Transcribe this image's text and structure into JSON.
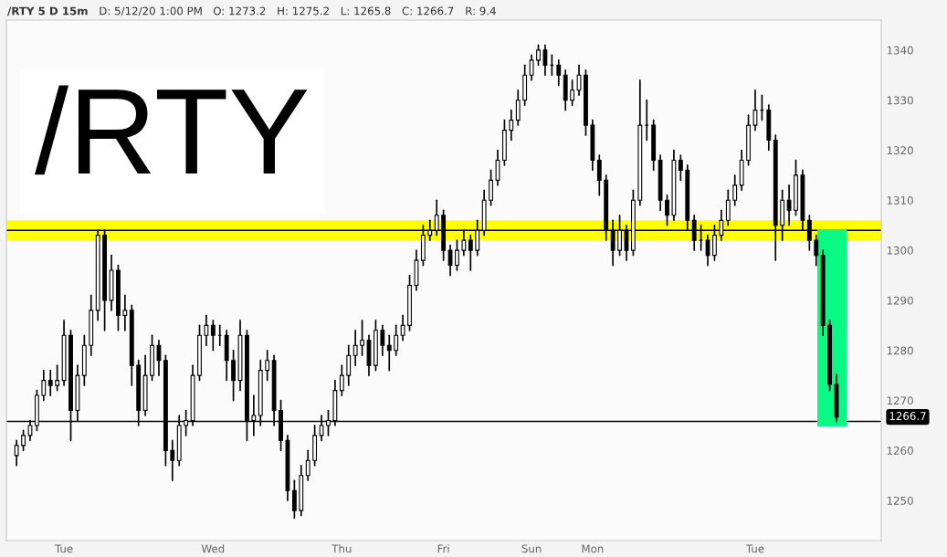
{
  "chart_data": {
    "type": "candlestick",
    "title": "/RTY",
    "annotations": [
      "/RTY 5 D 15m",
      "D: 5/12/20 1:00 PM",
      "O: 1273.2",
      "H: 1275.2",
      "L: 1265.8",
      "C: 1266.7",
      "R: 9.4",
      "1266.7"
    ],
    "categories": [
      null,
      null,
      null,
      null,
      null,
      null,
      null,
      "Tue",
      null,
      null,
      null,
      null,
      null,
      null,
      null,
      null,
      null,
      null,
      null,
      null,
      null,
      null,
      null,
      null,
      null,
      null,
      null,
      null,
      null,
      "Wed",
      null,
      null,
      null,
      null,
      null,
      null,
      null,
      null,
      null,
      null,
      null,
      null,
      null,
      null,
      null,
      null,
      null,
      null,
      "Thu",
      null,
      null,
      null,
      null,
      null,
      null,
      null,
      null,
      null,
      null,
      null,
      null,
      null,
      null,
      "Fri",
      null,
      null,
      null,
      null,
      null,
      null,
      null,
      null,
      null,
      null,
      null,
      null,
      "Sun",
      null,
      null,
      null,
      null,
      null,
      null,
      null,
      null,
      "Mon",
      null,
      null,
      null,
      null,
      null,
      null,
      null,
      null,
      null,
      null,
      null,
      null,
      null,
      null,
      null,
      null,
      null,
      null,
      null,
      null,
      null,
      null,
      null,
      "Tue",
      null,
      null,
      null,
      null,
      null,
      null,
      null,
      null,
      null,
      null,
      null,
      null
    ],
    "ohlc": [
      [
        1259,
        1262,
        1257,
        1261
      ],
      [
        1261,
        1264,
        1260,
        1263
      ],
      [
        1263,
        1266,
        1262,
        1265
      ],
      [
        1265,
        1272,
        1264,
        1271
      ],
      [
        1271,
        1276,
        1270,
        1274
      ],
      [
        1274,
        1276,
        1271,
        1273
      ],
      [
        1273,
        1277,
        1272,
        1274
      ],
      [
        1274,
        1286,
        1273,
        1283
      ],
      [
        1283,
        1284,
        1262,
        1268
      ],
      [
        1268,
        1277,
        1266,
        1275
      ],
      [
        1275,
        1283,
        1273,
        1281
      ],
      [
        1281,
        1291,
        1279,
        1288
      ],
      [
        1288,
        1304,
        1286,
        1303
      ],
      [
        1303,
        1304,
        1284,
        1290
      ],
      [
        1290,
        1299,
        1288,
        1296
      ],
      [
        1296,
        1297,
        1284,
        1287
      ],
      [
        1287,
        1291,
        1284,
        1288
      ],
      [
        1288,
        1289,
        1273,
        1277
      ],
      [
        1277,
        1278,
        1265,
        1268
      ],
      [
        1268,
        1279,
        1267,
        1275
      ],
      [
        1275,
        1283,
        1274,
        1281
      ],
      [
        1281,
        1282,
        1275,
        1278
      ],
      [
        1278,
        1279,
        1257,
        1260
      ],
      [
        1260,
        1262,
        1254,
        1258
      ],
      [
        1258,
        1267,
        1257,
        1265
      ],
      [
        1265,
        1268,
        1263,
        1266
      ],
      [
        1266,
        1277,
        1265,
        1275
      ],
      [
        1275,
        1285,
        1274,
        1283
      ],
      [
        1283,
        1287,
        1281,
        1285
      ],
      [
        1285,
        1286,
        1280,
        1283
      ],
      [
        1283,
        1285,
        1281,
        1283
      ],
      [
        1283,
        1284,
        1274,
        1278
      ],
      [
        1278,
        1280,
        1270,
        1274
      ],
      [
        1274,
        1286,
        1272,
        1283
      ],
      [
        1283,
        1284,
        1262,
        1266
      ],
      [
        1266,
        1271,
        1263,
        1267
      ],
      [
        1267,
        1278,
        1265,
        1276
      ],
      [
        1276,
        1280,
        1274,
        1278
      ],
      [
        1278,
        1279,
        1265,
        1268
      ],
      [
        1268,
        1270,
        1260,
        1262
      ],
      [
        1262,
        1263,
        1250,
        1252
      ],
      [
        1252,
        1254,
        1246.5,
        1248
      ],
      [
        1248,
        1257,
        1247,
        1255
      ],
      [
        1255,
        1260,
        1254,
        1258
      ],
      [
        1258,
        1265,
        1257,
        1263
      ],
      [
        1263,
        1267,
        1262,
        1265
      ],
      [
        1265,
        1268,
        1263,
        1266
      ],
      [
        1266,
        1274,
        1265,
        1272
      ],
      [
        1272,
        1277,
        1271,
        1275
      ],
      [
        1275,
        1281,
        1273,
        1279
      ],
      [
        1279,
        1284,
        1277,
        1281
      ],
      [
        1281,
        1286,
        1279,
        1282
      ],
      [
        1282,
        1283,
        1275,
        1277
      ],
      [
        1277,
        1286,
        1276,
        1284
      ],
      [
        1284,
        1285,
        1279,
        1281
      ],
      [
        1281,
        1283,
        1276,
        1280
      ],
      [
        1280,
        1285,
        1279,
        1283
      ],
      [
        1283,
        1287,
        1282,
        1285
      ],
      [
        1285,
        1295,
        1284,
        1293
      ],
      [
        1293,
        1300,
        1292,
        1298
      ],
      [
        1298,
        1305,
        1297,
        1303
      ],
      [
        1303,
        1306,
        1302,
        1304
      ],
      [
        1304,
        1310,
        1303,
        1307
      ],
      [
        1307,
        1308,
        1298,
        1300
      ],
      [
        1300,
        1301,
        1295,
        1297
      ],
      [
        1297,
        1302,
        1296,
        1300
      ],
      [
        1300,
        1304,
        1299,
        1302
      ],
      [
        1302,
        1303,
        1296,
        1300
      ],
      [
        1300,
        1306,
        1299,
        1304
      ],
      [
        1304,
        1312,
        1303,
        1310
      ],
      [
        1310,
        1316,
        1309,
        1314
      ],
      [
        1314,
        1320,
        1313,
        1318
      ],
      [
        1318,
        1326,
        1317,
        1324
      ],
      [
        1324,
        1328,
        1322,
        1326
      ],
      [
        1326,
        1332,
        1325,
        1330
      ],
      [
        1330,
        1337,
        1329,
        1335
      ],
      [
        1335,
        1339,
        1334,
        1338
      ],
      [
        1338,
        1341,
        1337,
        1340
      ],
      [
        1340,
        1341,
        1335,
        1337
      ],
      [
        1337,
        1339,
        1335,
        1337
      ],
      [
        1337,
        1338,
        1333,
        1335
      ],
      [
        1335,
        1336,
        1328,
        1330
      ],
      [
        1330,
        1334,
        1329,
        1332
      ],
      [
        1332,
        1337,
        1331,
        1335
      ],
      [
        1335,
        1336,
        1323,
        1325
      ],
      [
        1325,
        1326,
        1316,
        1318
      ],
      [
        1318,
        1319,
        1311,
        1314
      ],
      [
        1314,
        1315,
        1302,
        1304
      ],
      [
        1304,
        1306,
        1297,
        1300
      ],
      [
        1300,
        1307,
        1299,
        1304
      ],
      [
        1304,
        1305,
        1298,
        1300
      ],
      [
        1300,
        1312,
        1299,
        1310
      ],
      [
        1310,
        1334,
        1309,
        1325
      ],
      [
        1325,
        1330,
        1322,
        1325
      ],
      [
        1325,
        1326,
        1316,
        1318
      ],
      [
        1318,
        1319,
        1308,
        1310
      ],
      [
        1310,
        1311,
        1305,
        1307
      ],
      [
        1307,
        1320,
        1306,
        1318
      ],
      [
        1318,
        1319,
        1314,
        1316
      ],
      [
        1316,
        1317,
        1304,
        1306
      ],
      [
        1306,
        1307,
        1300,
        1302
      ],
      [
        1302,
        1305,
        1300,
        1302
      ],
      [
        1302,
        1303,
        1297,
        1299
      ],
      [
        1299,
        1305,
        1298,
        1303
      ],
      [
        1303,
        1308,
        1302,
        1306
      ],
      [
        1306,
        1312,
        1305,
        1310
      ],
      [
        1310,
        1315,
        1309,
        1313
      ],
      [
        1313,
        1320,
        1312,
        1318
      ],
      [
        1318,
        1327,
        1317,
        1325
      ],
      [
        1325,
        1332,
        1324,
        1328
      ],
      [
        1328,
        1331,
        1326,
        1328
      ],
      [
        1328,
        1329,
        1320,
        1322
      ],
      [
        1322,
        1323,
        1298,
        1305
      ],
      [
        1305,
        1312,
        1302,
        1310
      ],
      [
        1310,
        1313,
        1305,
        1308
      ],
      [
        1308,
        1318,
        1307,
        1315
      ],
      [
        1315,
        1316,
        1304,
        1306
      ],
      [
        1306,
        1307,
        1300,
        1302
      ],
      [
        1302,
        1303,
        1297,
        1299
      ],
      [
        1299,
        1300,
        1283,
        1285
      ],
      [
        1285,
        1286,
        1272,
        1273.2
      ],
      [
        1273.2,
        1275.2,
        1265.8,
        1266.7
      ]
    ],
    "color": "#000000",
    "ylim": [
      1242,
      1346
    ],
    "yticks": [
      1250,
      1260,
      1270,
      1280,
      1290,
      1300,
      1310,
      1320,
      1330,
      1340
    ],
    "ref_lines": [
      {
        "axis": "y",
        "value": 1304,
        "color": "#000000"
      },
      {
        "axis": "y",
        "value": 1265.8,
        "color": "#000000"
      }
    ],
    "bands": [
      {
        "axis": "y",
        "from": 1302,
        "to": 1306,
        "color": "#ffff00"
      }
    ],
    "grid": false
  }
}
